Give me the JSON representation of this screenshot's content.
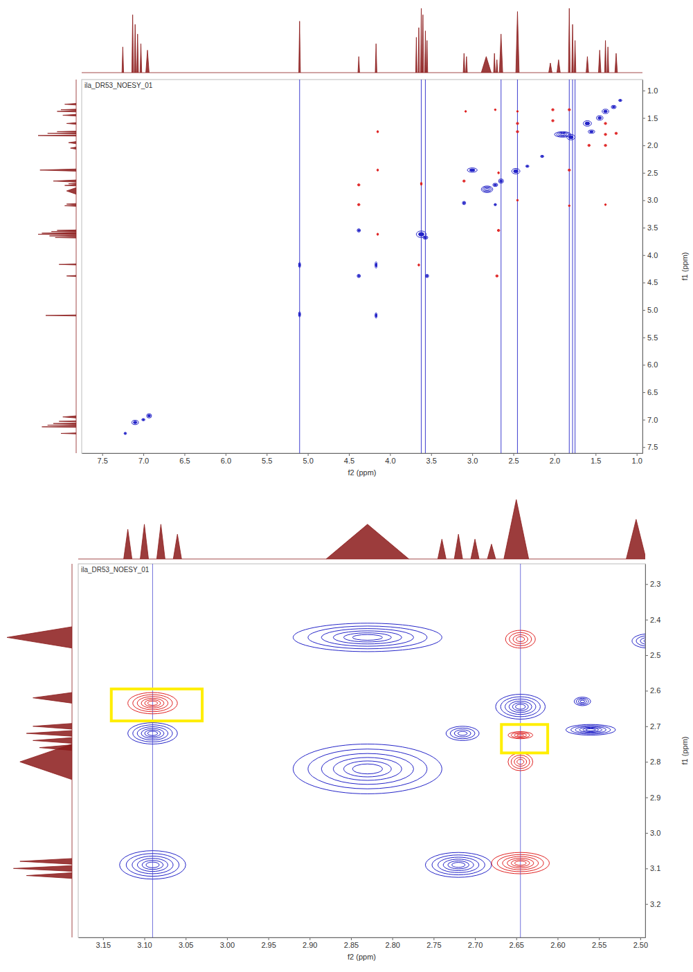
{
  "chart_data": [
    {
      "type": "contour",
      "title": "ila_DR53_NOESY_01",
      "x_label": "f2 (ppm)",
      "y_label": "f1 (ppm)",
      "xlim": [
        7.75,
        0.93
      ],
      "ylim": [
        0.8,
        7.61
      ],
      "xticks": [
        7.5,
        {
          "value": 7,
          "label": "7.0"
        },
        6.5,
        {
          "value": 6,
          "label": "6.0"
        },
        5.5,
        {
          "value": 5,
          "label": "5.0"
        },
        4.5,
        {
          "value": 4,
          "label": "4.0"
        },
        3.5,
        {
          "value": 3,
          "label": "3.0"
        },
        2.5,
        {
          "value": 2,
          "label": "2.0"
        },
        1.5,
        {
          "value": 1,
          "label": "1.0"
        }
      ],
      "yticks": [
        {
          "value": 1,
          "label": "1.0"
        },
        1.5,
        {
          "value": 2,
          "label": "2.0"
        },
        2.5,
        {
          "value": 3,
          "label": "3.0"
        },
        3.5,
        {
          "value": 4,
          "label": "4.0"
        },
        4.5,
        {
          "value": 5,
          "label": "5.0"
        },
        5.5,
        {
          "value": 6,
          "label": "6.0"
        },
        6.5,
        {
          "value": 7,
          "label": "7.0"
        },
        7.5
      ],
      "series": [
        {
          "color": "#2323c8",
          "x": [
            7.1,
            6.93,
            7.0,
            7.22,
            5.1,
            5.1,
            4.17,
            4.17,
            4.38,
            4.38,
            3.55,
            3.62,
            3.57,
            3.1,
            3.0,
            2.82,
            2.72,
            2.65,
            2.47,
            2.33,
            2.15,
            1.9,
            1.8,
            1.6,
            1.45,
            1.38,
            1.28,
            1.2,
            1.55,
            2.72
          ],
          "y": [
            7.05,
            6.93,
            7.0,
            7.25,
            5.08,
            4.18,
            4.18,
            5.1,
            4.38,
            3.55,
            4.38,
            3.62,
            3.68,
            3.05,
            2.45,
            2.8,
            2.72,
            2.65,
            2.47,
            2.38,
            2.2,
            1.8,
            1.85,
            1.6,
            1.5,
            1.38,
            1.3,
            1.18,
            1.75,
            3.08
          ],
          "x_halfwidth": [
            0.04,
            0.03,
            0.02,
            0.015,
            0.012,
            0.012,
            0.012,
            0.012,
            0.02,
            0.02,
            0.02,
            0.06,
            0.03,
            0.02,
            0.06,
            0.07,
            0.03,
            0.03,
            0.05,
            0.02,
            0.02,
            0.1,
            0.05,
            0.05,
            0.04,
            0.04,
            0.03,
            0.02,
            0.04,
            0.015
          ],
          "y_halfwidth": [
            0.04,
            0.04,
            0.02,
            0.02,
            0.05,
            0.05,
            0.06,
            0.05,
            0.03,
            0.03,
            0.03,
            0.06,
            0.03,
            0.03,
            0.04,
            0.06,
            0.03,
            0.04,
            0.05,
            0.02,
            0.02,
            0.05,
            0.05,
            0.05,
            0.04,
            0.04,
            0.03,
            0.02,
            0.03,
            0.02
          ]
        },
        {
          "color": "#e02020",
          "x": [
            4.38,
            4.38,
            4.15,
            4.15,
            4.15,
            3.62,
            3.65,
            3.1,
            3.08,
            2.7,
            2.68,
            2.72,
            2.68,
            2.45,
            2.45,
            2.45,
            2.45,
            2.02,
            2.02,
            1.82,
            1.82,
            1.82,
            1.58,
            1.38,
            1.38,
            1.38,
            1.38,
            1.25
          ],
          "y": [
            2.72,
            3.08,
            2.45,
            1.75,
            3.62,
            2.7,
            4.18,
            2.65,
            1.38,
            4.38,
            3.55,
            1.35,
            2.5,
            1.6,
            1.75,
            1.38,
            3.0,
            1.35,
            1.55,
            1.35,
            2.45,
            3.1,
            2.0,
            1.6,
            1.8,
            2.0,
            3.08,
            1.78
          ],
          "x_halfwidth": [
            0.015,
            0.015,
            0.01,
            0.01,
            0.01,
            0.01,
            0.01,
            0.015,
            0.01,
            0.015,
            0.015,
            0.01,
            0.01,
            0.015,
            0.015,
            0.01,
            0.01,
            0.015,
            0.015,
            0.015,
            0.015,
            0.01,
            0.015,
            0.015,
            0.015,
            0.015,
            0.01,
            0.015
          ],
          "y_halfwidth": [
            0.02,
            0.02,
            0.02,
            0.02,
            0.02,
            0.03,
            0.02,
            0.02,
            0.015,
            0.02,
            0.02,
            0.015,
            0.02,
            0.02,
            0.02,
            0.015,
            0.015,
            0.02,
            0.02,
            0.02,
            0.02,
            0.015,
            0.02,
            0.02,
            0.02,
            0.02,
            0.015,
            0.02
          ]
        }
      ],
      "t1_noise_x": [
        5.1,
        3.62,
        3.57,
        2.65,
        2.45,
        1.82,
        1.78,
        1.75
      ],
      "projection": {
        "color": "#8b1a1a",
        "ppm": [
          7.25,
          7.13,
          7.1,
          7.07,
          7.03,
          6.95,
          5.1,
          4.38,
          4.17,
          3.68,
          3.65,
          3.62,
          3.6,
          3.57,
          3.55,
          3.1,
          3.07,
          2.83,
          2.73,
          2.7,
          2.65,
          2.45,
          2.05,
          1.95,
          1.82,
          1.78,
          1.75,
          1.6,
          1.45,
          1.38,
          1.35,
          1.25
        ],
        "intensity": [
          0.4,
          0.9,
          0.75,
          0.6,
          0.45,
          0.35,
          0.8,
          0.25,
          0.45,
          0.55,
          0.7,
          1.0,
          0.9,
          0.65,
          0.5,
          0.3,
          0.25,
          0.25,
          0.3,
          0.2,
          0.6,
          0.95,
          0.15,
          0.2,
          1.0,
          0.75,
          0.5,
          0.25,
          0.35,
          0.5,
          0.4,
          0.3
        ],
        "linewidth": [
          0.01,
          0.01,
          0.01,
          0.01,
          0.01,
          0.02,
          0.01,
          0.01,
          0.01,
          0.008,
          0.008,
          0.008,
          0.008,
          0.008,
          0.008,
          0.01,
          0.01,
          0.06,
          0.01,
          0.01,
          0.02,
          0.02,
          0.02,
          0.02,
          0.01,
          0.01,
          0.01,
          0.015,
          0.015,
          0.01,
          0.01,
          0.015
        ]
      }
    },
    {
      "type": "contour",
      "title": "ila_DR53_NOESY_01",
      "x_label": "f2 (ppm)",
      "y_label": "f1 (ppm)",
      "xlim": [
        3.18,
        2.494
      ],
      "ylim": [
        2.243,
        3.294
      ],
      "xticks": [
        3.15,
        {
          "value": 3.1,
          "label": "3.10"
        },
        3.05,
        {
          "value": 3,
          "label": "3.00"
        },
        2.95,
        {
          "value": 2.9,
          "label": "2.90"
        },
        2.85,
        {
          "value": 2.8,
          "label": "2.80"
        },
        2.75,
        {
          "value": 2.7,
          "label": "2.70"
        },
        2.65,
        {
          "value": 2.6,
          "label": "2.60"
        },
        2.55,
        {
          "value": 2.5,
          "label": "2.50"
        }
      ],
      "yticks": [
        2.3,
        2.4,
        2.5,
        2.6,
        2.7,
        2.8,
        2.9,
        {
          "value": 3,
          "label": "3.0"
        },
        3.1,
        3.2
      ],
      "series": [
        {
          "color": "#2323c8",
          "x": [
            2.83,
            2.83,
            3.09,
            3.09,
            2.72,
            2.645,
            2.715,
            2.57,
            2.49,
            2.56
          ],
          "y": [
            2.45,
            2.82,
            2.72,
            3.09,
            3.09,
            2.645,
            2.72,
            2.63,
            2.46,
            2.71
          ],
          "x_halfwidth": [
            0.09,
            0.09,
            0.03,
            0.04,
            0.04,
            0.03,
            0.02,
            0.01,
            0.02,
            0.03
          ],
          "y_halfwidth": [
            0.04,
            0.07,
            0.03,
            0.04,
            0.035,
            0.035,
            0.02,
            0.012,
            0.02,
            0.015
          ]
        },
        {
          "color": "#e02020",
          "x": [
            3.09,
            2.645,
            2.645,
            2.645,
            2.645
          ],
          "y": [
            2.635,
            2.455,
            2.725,
            2.8,
            3.085
          ],
          "x_halfwidth": [
            0.03,
            0.018,
            0.015,
            0.015,
            0.035
          ],
          "y_halfwidth": [
            0.03,
            0.025,
            0.01,
            0.025,
            0.03
          ]
        }
      ],
      "t1_noise_x": [
        3.09,
        2.645
      ],
      "highlights": [
        {
          "color": "#ffee00",
          "x": [
            3.14,
            3.03
          ],
          "y": [
            2.595,
            2.685
          ]
        },
        {
          "color": "#ffee00",
          "x": [
            2.668,
            2.612
          ],
          "y": [
            2.695,
            2.775
          ]
        }
      ],
      "f2_projection": {
        "color": "#8b1a1a",
        "ppm": [
          3.12,
          3.1,
          3.08,
          3.06,
          2.83,
          2.74,
          2.72,
          2.7,
          2.68,
          2.65,
          2.505
        ],
        "intensity": [
          0.3,
          0.35,
          0.35,
          0.25,
          0.35,
          0.2,
          0.25,
          0.2,
          0.15,
          0.6,
          0.4
        ],
        "linewidth": [
          0.005,
          0.005,
          0.005,
          0.005,
          0.05,
          0.005,
          0.005,
          0.005,
          0.005,
          0.015,
          0.012
        ]
      },
      "f1_projection": {
        "color": "#8b1a1a",
        "ppm": [
          2.45,
          2.62,
          2.7,
          2.72,
          2.74,
          2.76,
          2.8,
          3.08,
          3.1,
          3.12
        ],
        "intensity": [
          0.5,
          0.3,
          0.3,
          0.35,
          0.3,
          0.25,
          0.4,
          0.4,
          0.45,
          0.35
        ],
        "linewidth": [
          0.03,
          0.015,
          0.008,
          0.008,
          0.008,
          0.008,
          0.05,
          0.008,
          0.008,
          0.008
        ]
      }
    }
  ]
}
